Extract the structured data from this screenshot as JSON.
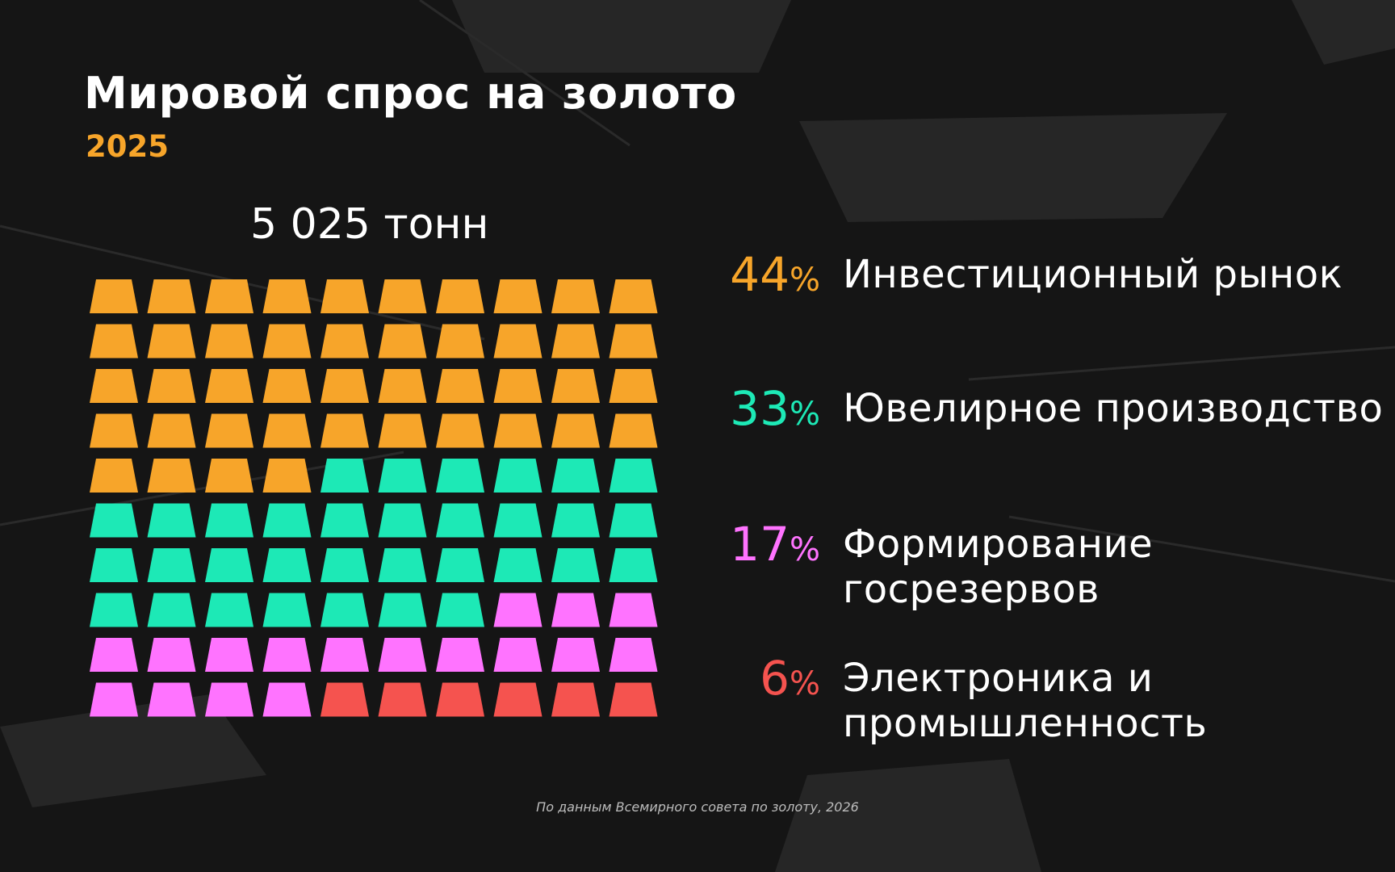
{
  "title": "Мировой спрос на золото",
  "subtitle": "2025",
  "total": "5 025 тонн",
  "source": "По данным Всемирного совета по золоту, 2026",
  "chart_data": {
    "type": "waffle",
    "title": "Мировой спрос на золото",
    "subtitle": "2025",
    "total_label": "5 025 тонн",
    "grid": {
      "rows": 10,
      "cols": 10
    },
    "icon": "gold-bar-icon",
    "categories": [
      {
        "label": "Инвестиционный рынок",
        "percent_text": "44",
        "value": 44,
        "color": "#f7a52a"
      },
      {
        "label": "Ювелирное производство",
        "percent_text": "33",
        "value": 33,
        "color": "#1de9b6"
      },
      {
        "label": "Формирование госрезервов",
        "percent_text": "17",
        "value": 17,
        "color": "#ff73ff"
      },
      {
        "label": "Электроника и промышленность",
        "percent_text": "6",
        "value": 6,
        "color": "#f5534f"
      }
    ]
  }
}
